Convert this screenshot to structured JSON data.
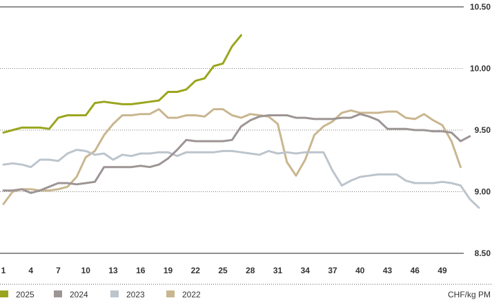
{
  "chart_data": {
    "type": "line",
    "unit": "CHF/kg PM",
    "ylim": [
      8.5,
      10.5
    ],
    "y_ticks": [
      "10.50",
      "10.00",
      "9.50",
      "9.00",
      "8.50"
    ],
    "x_ticks": [
      "1",
      "4",
      "7",
      "10",
      "13",
      "16",
      "19",
      "22",
      "25",
      "28",
      "31",
      "34",
      "37",
      "40",
      "43",
      "46",
      "49"
    ],
    "xlim": [
      1,
      53
    ],
    "grid": "horizontal dotted",
    "legend_position": "bottom-left",
    "series": [
      {
        "name": "2025",
        "color": "#9aa51d",
        "x": [
          1,
          2,
          3,
          4,
          5,
          6,
          7,
          8,
          9,
          10,
          11,
          12,
          13,
          14,
          15,
          16,
          17,
          18,
          19,
          20,
          21,
          22,
          23,
          24,
          25,
          26,
          27
        ],
        "y": [
          9.48,
          9.5,
          9.52,
          9.52,
          9.52,
          9.51,
          9.6,
          9.62,
          9.62,
          9.62,
          9.72,
          9.73,
          9.72,
          9.71,
          9.71,
          9.72,
          9.73,
          9.74,
          9.81,
          9.81,
          9.83,
          9.9,
          9.92,
          10.02,
          10.04,
          10.18,
          10.27
        ]
      },
      {
        "name": "2024",
        "color": "#9d9494",
        "x": [
          1,
          2,
          3,
          4,
          5,
          6,
          7,
          8,
          9,
          10,
          11,
          12,
          13,
          14,
          15,
          16,
          17,
          18,
          19,
          20,
          21,
          22,
          23,
          24,
          25,
          26,
          27,
          28,
          29,
          30,
          31,
          32,
          33,
          34,
          35,
          36,
          37,
          38,
          39,
          40,
          41,
          42,
          43,
          44,
          45,
          46,
          47,
          48,
          49,
          50,
          51,
          52
        ],
        "y": [
          9.01,
          9.01,
          9.02,
          8.99,
          9.01,
          9.04,
          9.07,
          9.07,
          9.06,
          9.07,
          9.08,
          9.2,
          9.2,
          9.2,
          9.2,
          9.21,
          9.2,
          9.22,
          9.27,
          9.34,
          9.42,
          9.41,
          9.41,
          9.41,
          9.41,
          9.42,
          9.53,
          9.58,
          9.61,
          9.62,
          9.62,
          9.62,
          9.6,
          9.6,
          9.59,
          9.59,
          9.59,
          9.6,
          9.6,
          9.63,
          9.61,
          9.58,
          9.51,
          9.51,
          9.51,
          9.5,
          9.5,
          9.49,
          9.49,
          9.48,
          9.41,
          9.45
        ]
      },
      {
        "name": "2023",
        "color": "#bcc4cc",
        "x": [
          1,
          2,
          3,
          4,
          5,
          6,
          7,
          8,
          9,
          10,
          11,
          12,
          13,
          14,
          15,
          16,
          17,
          18,
          19,
          20,
          21,
          22,
          23,
          24,
          25,
          26,
          27,
          28,
          29,
          30,
          31,
          32,
          33,
          34,
          35,
          36,
          37,
          38,
          39,
          40,
          41,
          42,
          43,
          44,
          45,
          46,
          47,
          48,
          49,
          50,
          51,
          52,
          53
        ],
        "y": [
          9.22,
          9.23,
          9.22,
          9.2,
          9.26,
          9.26,
          9.25,
          9.31,
          9.34,
          9.33,
          9.3,
          9.31,
          9.26,
          9.3,
          9.29,
          9.31,
          9.31,
          9.32,
          9.32,
          9.29,
          9.32,
          9.32,
          9.32,
          9.32,
          9.33,
          9.33,
          9.32,
          9.31,
          9.3,
          9.33,
          9.31,
          9.32,
          9.31,
          9.32,
          9.32,
          9.32,
          9.17,
          9.05,
          9.09,
          9.12,
          9.13,
          9.14,
          9.14,
          9.14,
          9.09,
          9.07,
          9.07,
          9.07,
          9.08,
          9.07,
          9.05,
          8.94,
          8.87
        ]
      },
      {
        "name": "2022",
        "color": "#c9b68f",
        "x": [
          1,
          2,
          3,
          4,
          5,
          6,
          7,
          8,
          9,
          10,
          11,
          12,
          13,
          14,
          15,
          16,
          17,
          18,
          19,
          20,
          21,
          22,
          23,
          24,
          25,
          26,
          27,
          28,
          29,
          30,
          31,
          32,
          33,
          34,
          35,
          36,
          37,
          38,
          39,
          40,
          41,
          42,
          43,
          44,
          45,
          46,
          47,
          48,
          49,
          50,
          51
        ],
        "y": [
          8.9,
          9.0,
          9.02,
          9.02,
          9.01,
          9.01,
          9.02,
          9.04,
          9.12,
          9.28,
          9.33,
          9.46,
          9.55,
          9.62,
          9.62,
          9.63,
          9.63,
          9.67,
          9.6,
          9.6,
          9.62,
          9.62,
          9.61,
          9.67,
          9.67,
          9.62,
          9.6,
          9.63,
          9.62,
          9.61,
          9.55,
          9.24,
          9.13,
          9.26,
          9.46,
          9.53,
          9.57,
          9.64,
          9.66,
          9.64,
          9.64,
          9.64,
          9.65,
          9.65,
          9.6,
          9.59,
          9.63,
          9.58,
          9.54,
          9.41,
          9.2
        ]
      }
    ]
  }
}
